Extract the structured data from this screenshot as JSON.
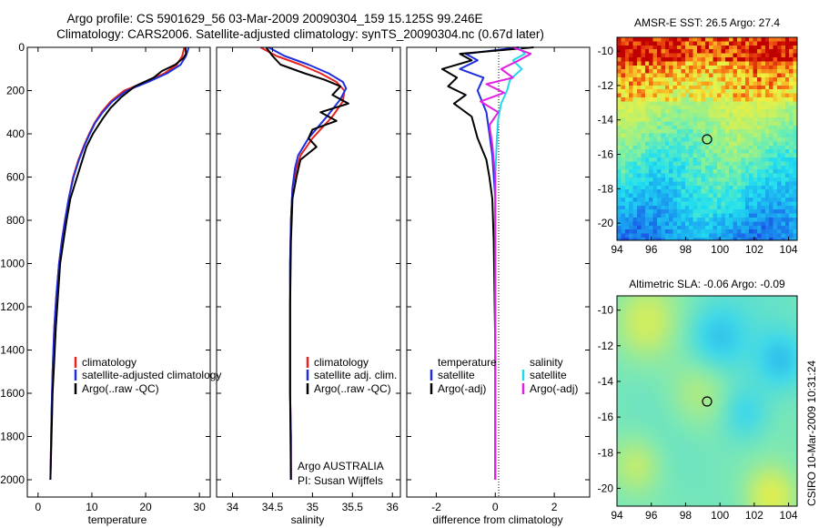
{
  "header": {
    "line1": "Argo profile: CS 5901629_56 03-Mar-2009 20090304_159 15.125S 99.246E",
    "line2": "Climatology: CARS2006. Satellite-adjusted climatology: synTS_20090304.nc (0.67d later)"
  },
  "footer": {
    "credit_line1": "Argo AUSTRALIA",
    "credit_line2": "PI: Susan Wijffels",
    "timestamp": "CSIRO 10-Mar-2009 10:31:24"
  },
  "colors": {
    "climatology": "#e8221e",
    "satellite": "#1f2fe0",
    "argo": "#000000",
    "sat_salinity": "#22d8e8",
    "argo_salinity": "#e020e0"
  },
  "chart_data": [
    {
      "type": "line",
      "id": "temperature",
      "xlabel": "temperature",
      "ylabel": "",
      "xlim": [
        -2,
        32
      ],
      "ylim": [
        2080,
        0
      ],
      "xticks": [
        0,
        10,
        20,
        30
      ],
      "yticks": [
        0,
        200,
        400,
        600,
        800,
        1000,
        1200,
        1400,
        1600,
        1800,
        2000
      ],
      "legend": [
        "climatology",
        "satellite-adjusted climatology",
        "Argo(..raw -QC)"
      ],
      "legend_placement": "lower-middle",
      "series": [
        {
          "name": "climatology",
          "color_key": "climatology",
          "x": [
            27.2,
            26.8,
            25.8,
            23.5,
            20.0,
            16.0,
            13.5,
            11.8,
            10.5,
            9.5,
            8.6,
            7.5,
            6.5,
            5.7,
            5.0,
            4.4,
            3.9,
            3.4,
            3.0,
            2.7,
            2.5,
            2.3
          ],
          "y": [
            0,
            40,
            80,
            120,
            160,
            200,
            250,
            300,
            350,
            400,
            450,
            520,
            600,
            700,
            800,
            900,
            1000,
            1150,
            1300,
            1500,
            1700,
            2000
          ]
        },
        {
          "name": "satellite-adjusted climatology",
          "color_key": "satellite",
          "x": [
            28.0,
            27.5,
            26.5,
            24.0,
            20.5,
            16.5,
            13.8,
            12.0,
            10.6,
            9.6,
            8.7,
            7.6,
            6.6,
            5.7,
            5.0,
            4.4,
            3.9,
            3.4,
            3.0,
            2.7,
            2.5,
            2.3
          ],
          "y": [
            0,
            40,
            80,
            120,
            160,
            200,
            250,
            300,
            350,
            400,
            450,
            520,
            600,
            700,
            800,
            900,
            1000,
            1150,
            1300,
            1500,
            1700,
            2000
          ]
        },
        {
          "name": "Argo(..raw -QC)",
          "color_key": "argo",
          "x": [
            27.4,
            27.5,
            27.0,
            25.5,
            23.0,
            21.5,
            18.0,
            15.5,
            13.5,
            12.0,
            10.2,
            9.0,
            8.0,
            7.0,
            6.0,
            5.3,
            4.7,
            4.1,
            3.7,
            3.3,
            3.0,
            2.7,
            2.5,
            2.3
          ],
          "y": [
            0,
            30,
            50,
            80,
            110,
            140,
            180,
            230,
            280,
            330,
            400,
            460,
            540,
            620,
            700,
            800,
            900,
            1000,
            1150,
            1300,
            1450,
            1600,
            1800,
            2000
          ]
        }
      ]
    },
    {
      "type": "line",
      "id": "salinity",
      "xlabel": "salinity",
      "xlim": [
        33.8,
        36.1
      ],
      "ylim": [
        2080,
        0
      ],
      "xticks": [
        34,
        34.5,
        35,
        35.5,
        36
      ],
      "legend": [
        "climatology",
        "satellite adj. clim.",
        "Argo(..raw -QC)"
      ],
      "legend_placement": "lower-middle",
      "series": [
        {
          "name": "climatology",
          "color_key": "climatology",
          "x": [
            34.35,
            34.55,
            34.85,
            35.1,
            35.3,
            35.4,
            35.38,
            35.25,
            35.0,
            34.85,
            34.8,
            34.75,
            34.73,
            34.72,
            34.72,
            34.72,
            34.73,
            34.73
          ],
          "y": [
            0,
            40,
            80,
            120,
            160,
            200,
            250,
            320,
            420,
            500,
            560,
            650,
            800,
            1000,
            1300,
            1600,
            1800,
            2000
          ]
        },
        {
          "name": "satellite adj. clim.",
          "color_key": "satellite",
          "x": [
            34.45,
            34.65,
            34.95,
            35.2,
            35.38,
            35.42,
            35.35,
            35.18,
            34.95,
            34.82,
            34.78,
            34.75,
            34.73,
            34.72,
            34.72,
            34.72,
            34.73,
            34.73
          ],
          "y": [
            0,
            40,
            80,
            120,
            160,
            190,
            240,
            320,
            420,
            500,
            560,
            650,
            800,
            1000,
            1300,
            1600,
            1800,
            2000
          ]
        },
        {
          "name": "Argo(..raw -QC)",
          "color_key": "argo",
          "x": [
            34.42,
            34.5,
            34.6,
            34.9,
            35.15,
            35.35,
            35.25,
            35.45,
            35.1,
            35.3,
            35.0,
            34.95,
            35.05,
            34.85,
            34.8,
            34.75,
            34.73,
            34.72,
            34.72,
            34.73
          ],
          "y": [
            0,
            40,
            80,
            120,
            150,
            180,
            220,
            260,
            300,
            340,
            380,
            420,
            460,
            520,
            600,
            700,
            900,
            1200,
            1600,
            2000
          ]
        }
      ]
    },
    {
      "type": "line",
      "id": "difference",
      "xlabel": "difference from climatology",
      "xlim": [
        -3,
        3.2
      ],
      "ylim": [
        2080,
        0
      ],
      "xticks": [
        -2,
        0,
        2
      ],
      "legend": [
        "temperature",
        "satellite",
        "Argo(-adj)",
        "salinity",
        "satellite",
        "Argo(-adj)"
      ],
      "legend_placement": "lower-middle",
      "series": [
        {
          "name": "temperature satellite",
          "color_key": "satellite",
          "x": [
            0.8,
            -1.0,
            -0.6,
            -1.2,
            -0.4,
            -0.6,
            -0.3,
            -0.2,
            -0.1,
            0.0,
            0.0,
            0.0,
            0.0,
            0.0,
            0.0
          ],
          "y": [
            0,
            30,
            60,
            100,
            140,
            200,
            300,
            400,
            500,
            700,
            900,
            1200,
            1500,
            1800,
            2000
          ]
        },
        {
          "name": "temperature Argo(-adj)",
          "color_key": "argo",
          "x": [
            1.3,
            -1.2,
            -0.8,
            -1.8,
            -1.3,
            -1.6,
            -1.0,
            -1.4,
            -0.8,
            -0.6,
            -0.3,
            -0.2,
            -0.1,
            -0.05,
            0.0,
            0.0
          ],
          "y": [
            0,
            30,
            60,
            100,
            140,
            180,
            220,
            260,
            320,
            420,
            520,
            600,
            700,
            900,
            1400,
            2000
          ]
        },
        {
          "name": "salinity satellite",
          "color_key": "sat_salinity",
          "x": [
            0.8,
            1.0,
            0.6,
            0.9,
            0.5,
            0.4,
            0.2,
            0.1,
            0.05,
            0.0,
            0.0,
            0.0,
            0.0,
            0.0
          ],
          "y": [
            0,
            30,
            60,
            100,
            150,
            200,
            260,
            330,
            430,
            600,
            900,
            1300,
            1700,
            2000
          ]
        },
        {
          "name": "salinity Argo(-adj)",
          "color_key": "argo_salinity",
          "x": [
            0.6,
            1.2,
            0.8,
            0.2,
            0.6,
            -0.3,
            0.3,
            -0.5,
            0.1,
            -0.2,
            -0.1,
            0.0,
            0.0,
            0.0,
            0.0
          ],
          "y": [
            0,
            30,
            60,
            100,
            140,
            170,
            210,
            250,
            300,
            360,
            450,
            600,
            900,
            1400,
            2000
          ]
        }
      ]
    },
    {
      "type": "heatmap",
      "id": "sst_map",
      "title": "AMSR-E SST: 26.5 Argo: 27.4",
      "xlim": [
        94,
        104.5
      ],
      "ylim": [
        -21,
        -9.2
      ],
      "xticks": [
        94,
        96,
        98,
        100,
        102,
        104
      ],
      "yticks": [
        -10,
        -12,
        -14,
        -16,
        -18,
        -20
      ],
      "marker": {
        "lon": 99.25,
        "lat": -15.125
      },
      "colorscale": [
        "#1a40e0",
        "#1a9cf0",
        "#22e0f0",
        "#80f0a0",
        "#c8f060",
        "#f0f040",
        "#f8b020",
        "#f05010",
        "#c00000"
      ]
    },
    {
      "type": "heatmap",
      "id": "sla_map",
      "title": "Altimetric SLA: -0.06 Argo: -0.09",
      "xlim": [
        94,
        104.5
      ],
      "ylim": [
        -21,
        -9.2
      ],
      "xticks": [
        94,
        96,
        98,
        100,
        102,
        104
      ],
      "yticks": [
        -10,
        -12,
        -14,
        -16,
        -18,
        -20
      ],
      "marker": {
        "lon": 99.25,
        "lat": -15.125
      },
      "colorscale": [
        "#1ea8f0",
        "#40d8e8",
        "#80e8b0",
        "#c0ec70",
        "#f0f040"
      ]
    }
  ]
}
